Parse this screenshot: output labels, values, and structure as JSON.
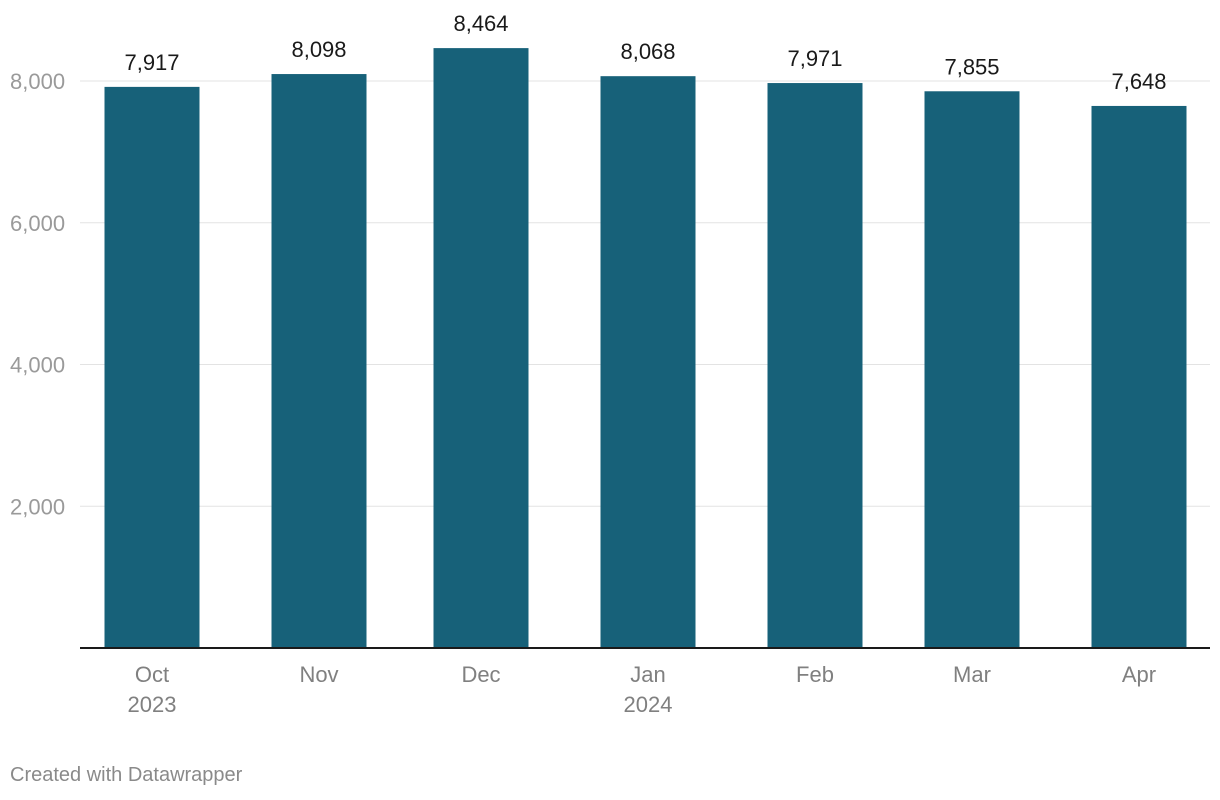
{
  "chart_data": {
    "type": "bar",
    "title": "",
    "xlabel": "",
    "ylabel": "",
    "categories": [
      "Oct 2023",
      "Nov",
      "Dec",
      "Jan 2024",
      "Feb",
      "Mar",
      "Apr"
    ],
    "category_labels": [
      [
        "Oct",
        "2023"
      ],
      [
        "Nov"
      ],
      [
        "Dec"
      ],
      [
        "Jan",
        "2024"
      ],
      [
        "Feb"
      ],
      [
        "Mar"
      ],
      [
        "Apr"
      ]
    ],
    "values": [
      7917,
      8098,
      8464,
      8068,
      7971,
      7855,
      7648
    ],
    "value_labels": [
      "7,917",
      "8,098",
      "8,464",
      "8,068",
      "7,971",
      "7,855",
      "7,648"
    ],
    "ylim": [
      0,
      8500
    ],
    "y_ticks": [
      2000,
      4000,
      6000,
      8000
    ],
    "y_tick_labels": [
      "2,000",
      "4,000",
      "6,000",
      "8,000"
    ],
    "bar_color": "#176179",
    "grid": true,
    "legend": false
  },
  "footer": {
    "credit": "Created with Datawrapper"
  }
}
